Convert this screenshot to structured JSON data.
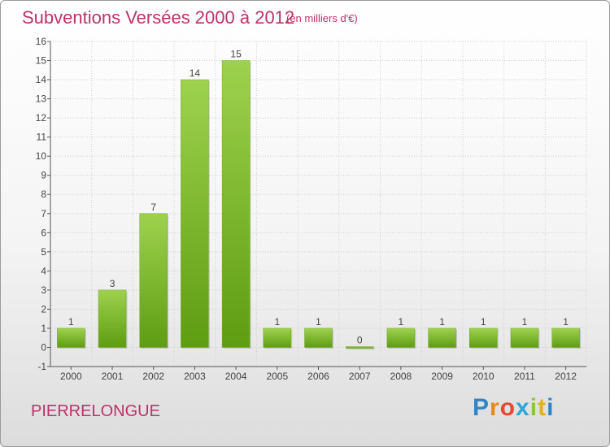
{
  "header": {
    "title": "Subventions Versées 2000 à 2012",
    "unit_note": "(en milliers d'€)"
  },
  "footer": {
    "commune": "PIERRELONGUE",
    "logo": {
      "letters": [
        "P",
        "r",
        "o",
        "x",
        "i",
        "t",
        "i"
      ],
      "colors": [
        "#2e86c8",
        "#e48a1c",
        "#e54b2c",
        "#2fa6d8",
        "#8cc63f",
        "#e0b21c",
        "#2e86c8"
      ]
    }
  },
  "colors": {
    "accent": "#c0306a",
    "bar_top": "#9ed24e",
    "bar_bottom": "#5e9c12",
    "axis": "#555555",
    "grid": "#cfcfcf"
  },
  "chart_data": {
    "type": "bar",
    "categories": [
      "2000",
      "2001",
      "2002",
      "2003",
      "2004",
      "2005",
      "2006",
      "2007",
      "2008",
      "2009",
      "2010",
      "2011",
      "2012"
    ],
    "values": [
      1,
      3,
      7,
      14,
      15,
      1,
      1,
      0,
      1,
      1,
      1,
      1,
      1
    ],
    "data_labels": [
      "1",
      "3",
      "7",
      "14",
      "15",
      "1",
      "1",
      "0",
      "1",
      "1",
      "1",
      "1",
      "1"
    ],
    "y_ticks": [
      "-1",
      "0",
      "1",
      "2",
      "3",
      "4",
      "5",
      "6",
      "7",
      "8",
      "9",
      "10",
      "11",
      "12",
      "13",
      "14",
      "15",
      "16"
    ],
    "ylim": [
      -1,
      16
    ],
    "grid": true,
    "legend": "none"
  }
}
